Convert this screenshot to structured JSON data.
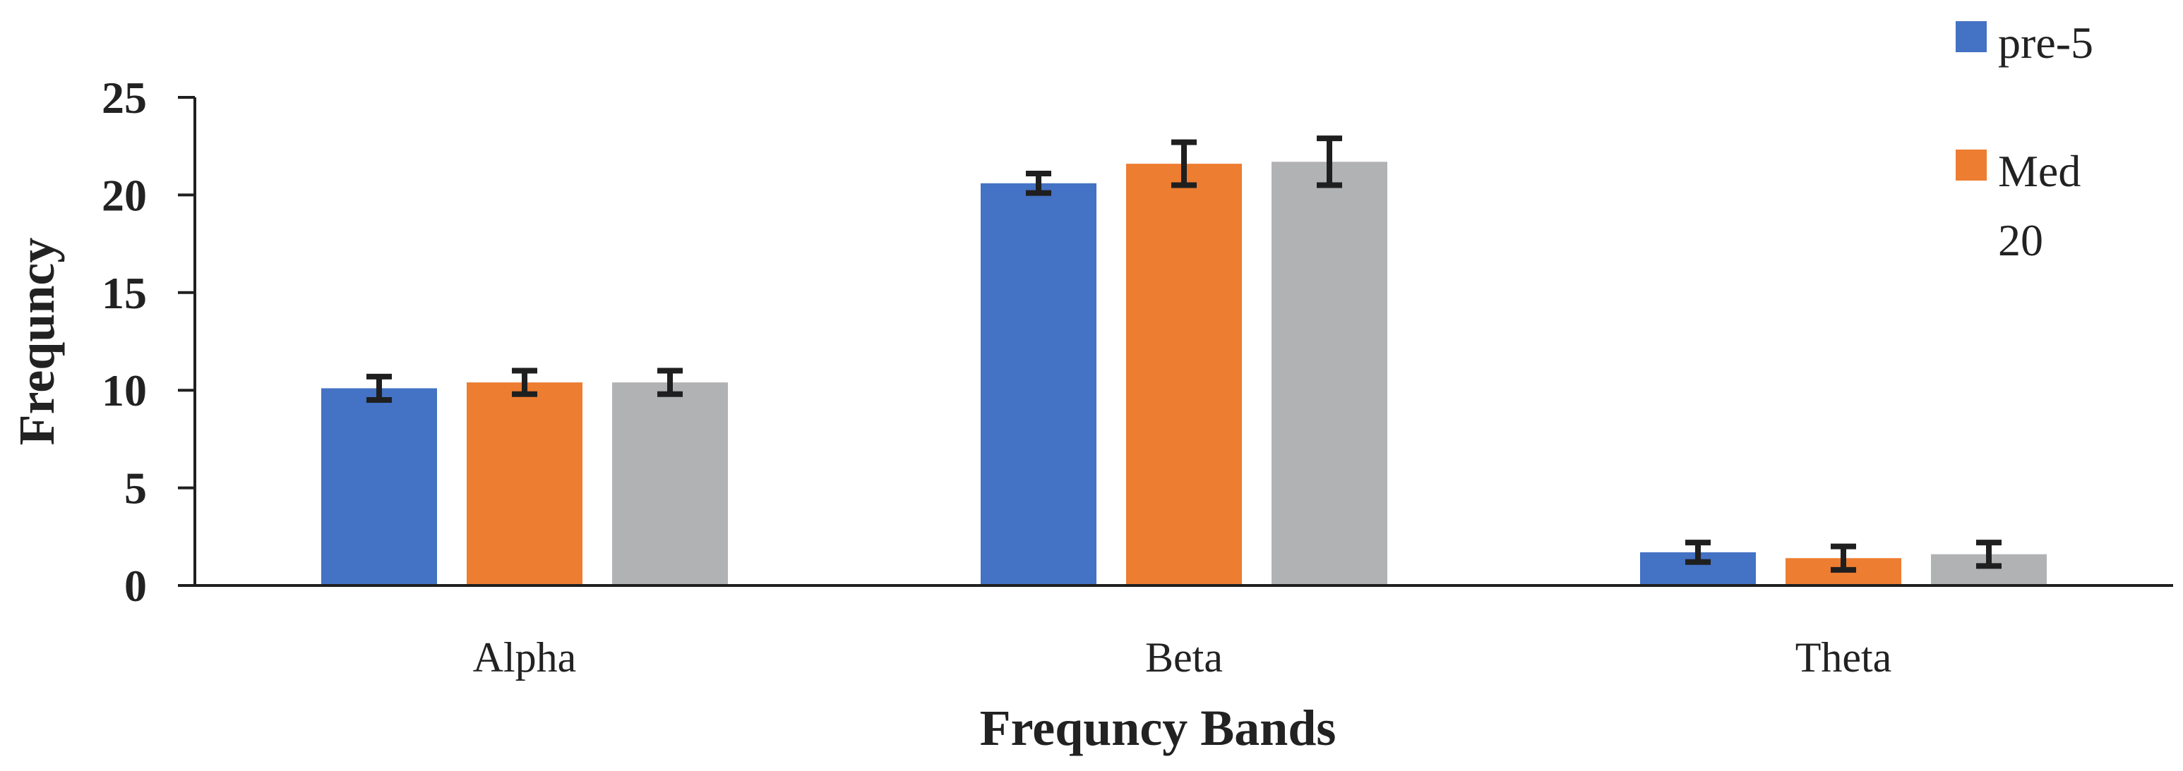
{
  "chart_data": {
    "type": "bar",
    "categories": [
      "Alpha",
      "Beta",
      "Theta"
    ],
    "series": [
      {
        "name": "pre-5",
        "color": "#4472C4",
        "values": [
          10.1,
          20.6,
          1.7
        ],
        "errors": [
          0.6,
          0.5,
          0.5
        ]
      },
      {
        "name": "Med 20",
        "color": "#ED7D31",
        "values": [
          10.4,
          21.6,
          1.4
        ],
        "errors": [
          0.6,
          1.1,
          0.6
        ]
      },
      {
        "color": "#B1B2B4",
        "values": [
          10.4,
          21.7,
          1.6
        ],
        "errors": [
          0.6,
          1.2,
          0.6
        ]
      }
    ],
    "xlabel": "Frequncy Bands",
    "ylabel": "Frequncy",
    "ylim": [
      0,
      25
    ],
    "yticks": [
      0,
      5,
      10,
      15,
      20,
      25
    ],
    "legend_position": "top-right",
    "grid": false
  }
}
